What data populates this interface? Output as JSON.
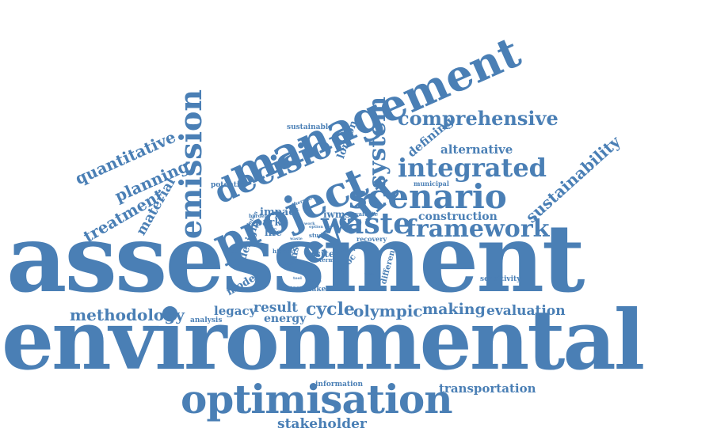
{
  "colors": {
    "word": "#4a7fb5",
    "background": "#ffffff"
  },
  "words": [
    "assessment",
    "environmental",
    "optimisation",
    "management",
    "project",
    "decision",
    "emission",
    "event",
    "scenario",
    "integrated",
    "system",
    "framework",
    "waste",
    "comprehensive",
    "quantitative",
    "planning",
    "treatment",
    "material",
    "sustainability",
    "alternative",
    "defining",
    "london",
    "sustainable",
    "potential",
    "construction",
    "methodology",
    "legacy",
    "result",
    "energy",
    "cycle",
    "olympic",
    "making",
    "evaluation",
    "transportation",
    "stakeholder",
    "information",
    "analysis",
    "model",
    "design",
    "impact",
    "park",
    "life",
    "iwms",
    "wmss",
    "site",
    "proc",
    "different",
    "sensitivity",
    "success",
    "maker",
    "phase",
    "municipal",
    "evaluate",
    "recovery",
    "highest",
    "burden",
    "thermal",
    "study",
    "term",
    "option",
    "paper",
    "solution",
    "work",
    "waste",
    "cost",
    "tool",
    "goal",
    "mode"
  ]
}
